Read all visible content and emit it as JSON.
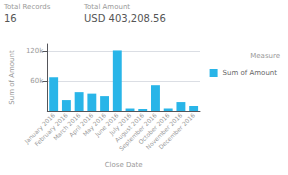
{
  "chart_data": {
    "type": "bar",
    "annotations": [
      "Total Records",
      "16",
      "Total Amount",
      "USD 403,208.56"
    ],
    "xlabel": "Close Date",
    "ylabel": "Sum of Amount",
    "legend_title": "Measure",
    "categories": [
      "January 2016",
      "February 2016",
      "March 2016",
      "April 2016",
      "May 2016",
      "June 2016",
      "July 2016",
      "August 2016",
      "September 2016",
      "October 2016",
      "November 2016",
      "December 2016"
    ],
    "series": [
      {
        "name": "Sum of Amount",
        "color": "#29b5e8",
        "values": [
          68,
          22,
          38,
          35,
          30,
          122,
          5,
          4,
          52,
          5,
          18,
          10
        ]
      }
    ],
    "ylim": [
      0,
      135
    ],
    "yticks": [
      {
        "value": 60,
        "label": "60k"
      },
      {
        "value": 120,
        "label": "120k"
      }
    ],
    "grid": true,
    "legend": "right"
  }
}
